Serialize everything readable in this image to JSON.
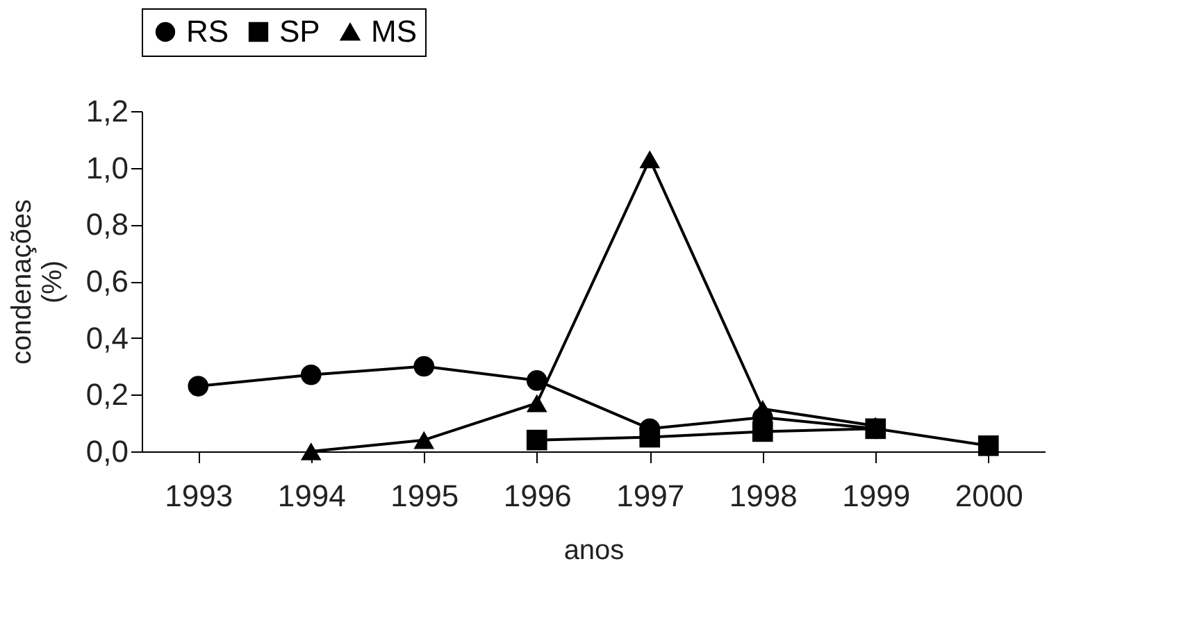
{
  "chart_data": {
    "type": "line",
    "xlabel": "anos",
    "ylabel": "condenações (%)",
    "categories": [
      "1993",
      "1994",
      "1995",
      "1996",
      "1997",
      "1998",
      "1999",
      "2000"
    ],
    "series": [
      {
        "name": "RS",
        "color": "#000000",
        "marker": "circle",
        "values": [
          0.23,
          0.27,
          0.3,
          0.25,
          0.08,
          0.12,
          0.08,
          null
        ]
      },
      {
        "name": "SP",
        "color": "#000000",
        "marker": "square",
        "values": [
          null,
          null,
          null,
          0.04,
          0.05,
          0.07,
          0.08,
          0.02
        ]
      },
      {
        "name": "MS",
        "color": "#000000",
        "marker": "triangle",
        "values": [
          null,
          0.0,
          0.04,
          0.17,
          1.03,
          0.15,
          0.09,
          null
        ]
      }
    ],
    "ylim": [
      0,
      1.2
    ],
    "yticks": [
      {
        "value": 0,
        "label": "0,0"
      },
      {
        "value": 0.2,
        "label": "0,2"
      },
      {
        "value": 0.4,
        "label": "0,4"
      },
      {
        "value": 0.6,
        "label": "0,6"
      },
      {
        "value": 0.8,
        "label": "0,8"
      },
      {
        "value": 1.0,
        "label": "1,0"
      },
      {
        "value": 1.2,
        "label": "1,2"
      }
    ],
    "grid": false,
    "legend": "top",
    "line_style": "solid"
  }
}
